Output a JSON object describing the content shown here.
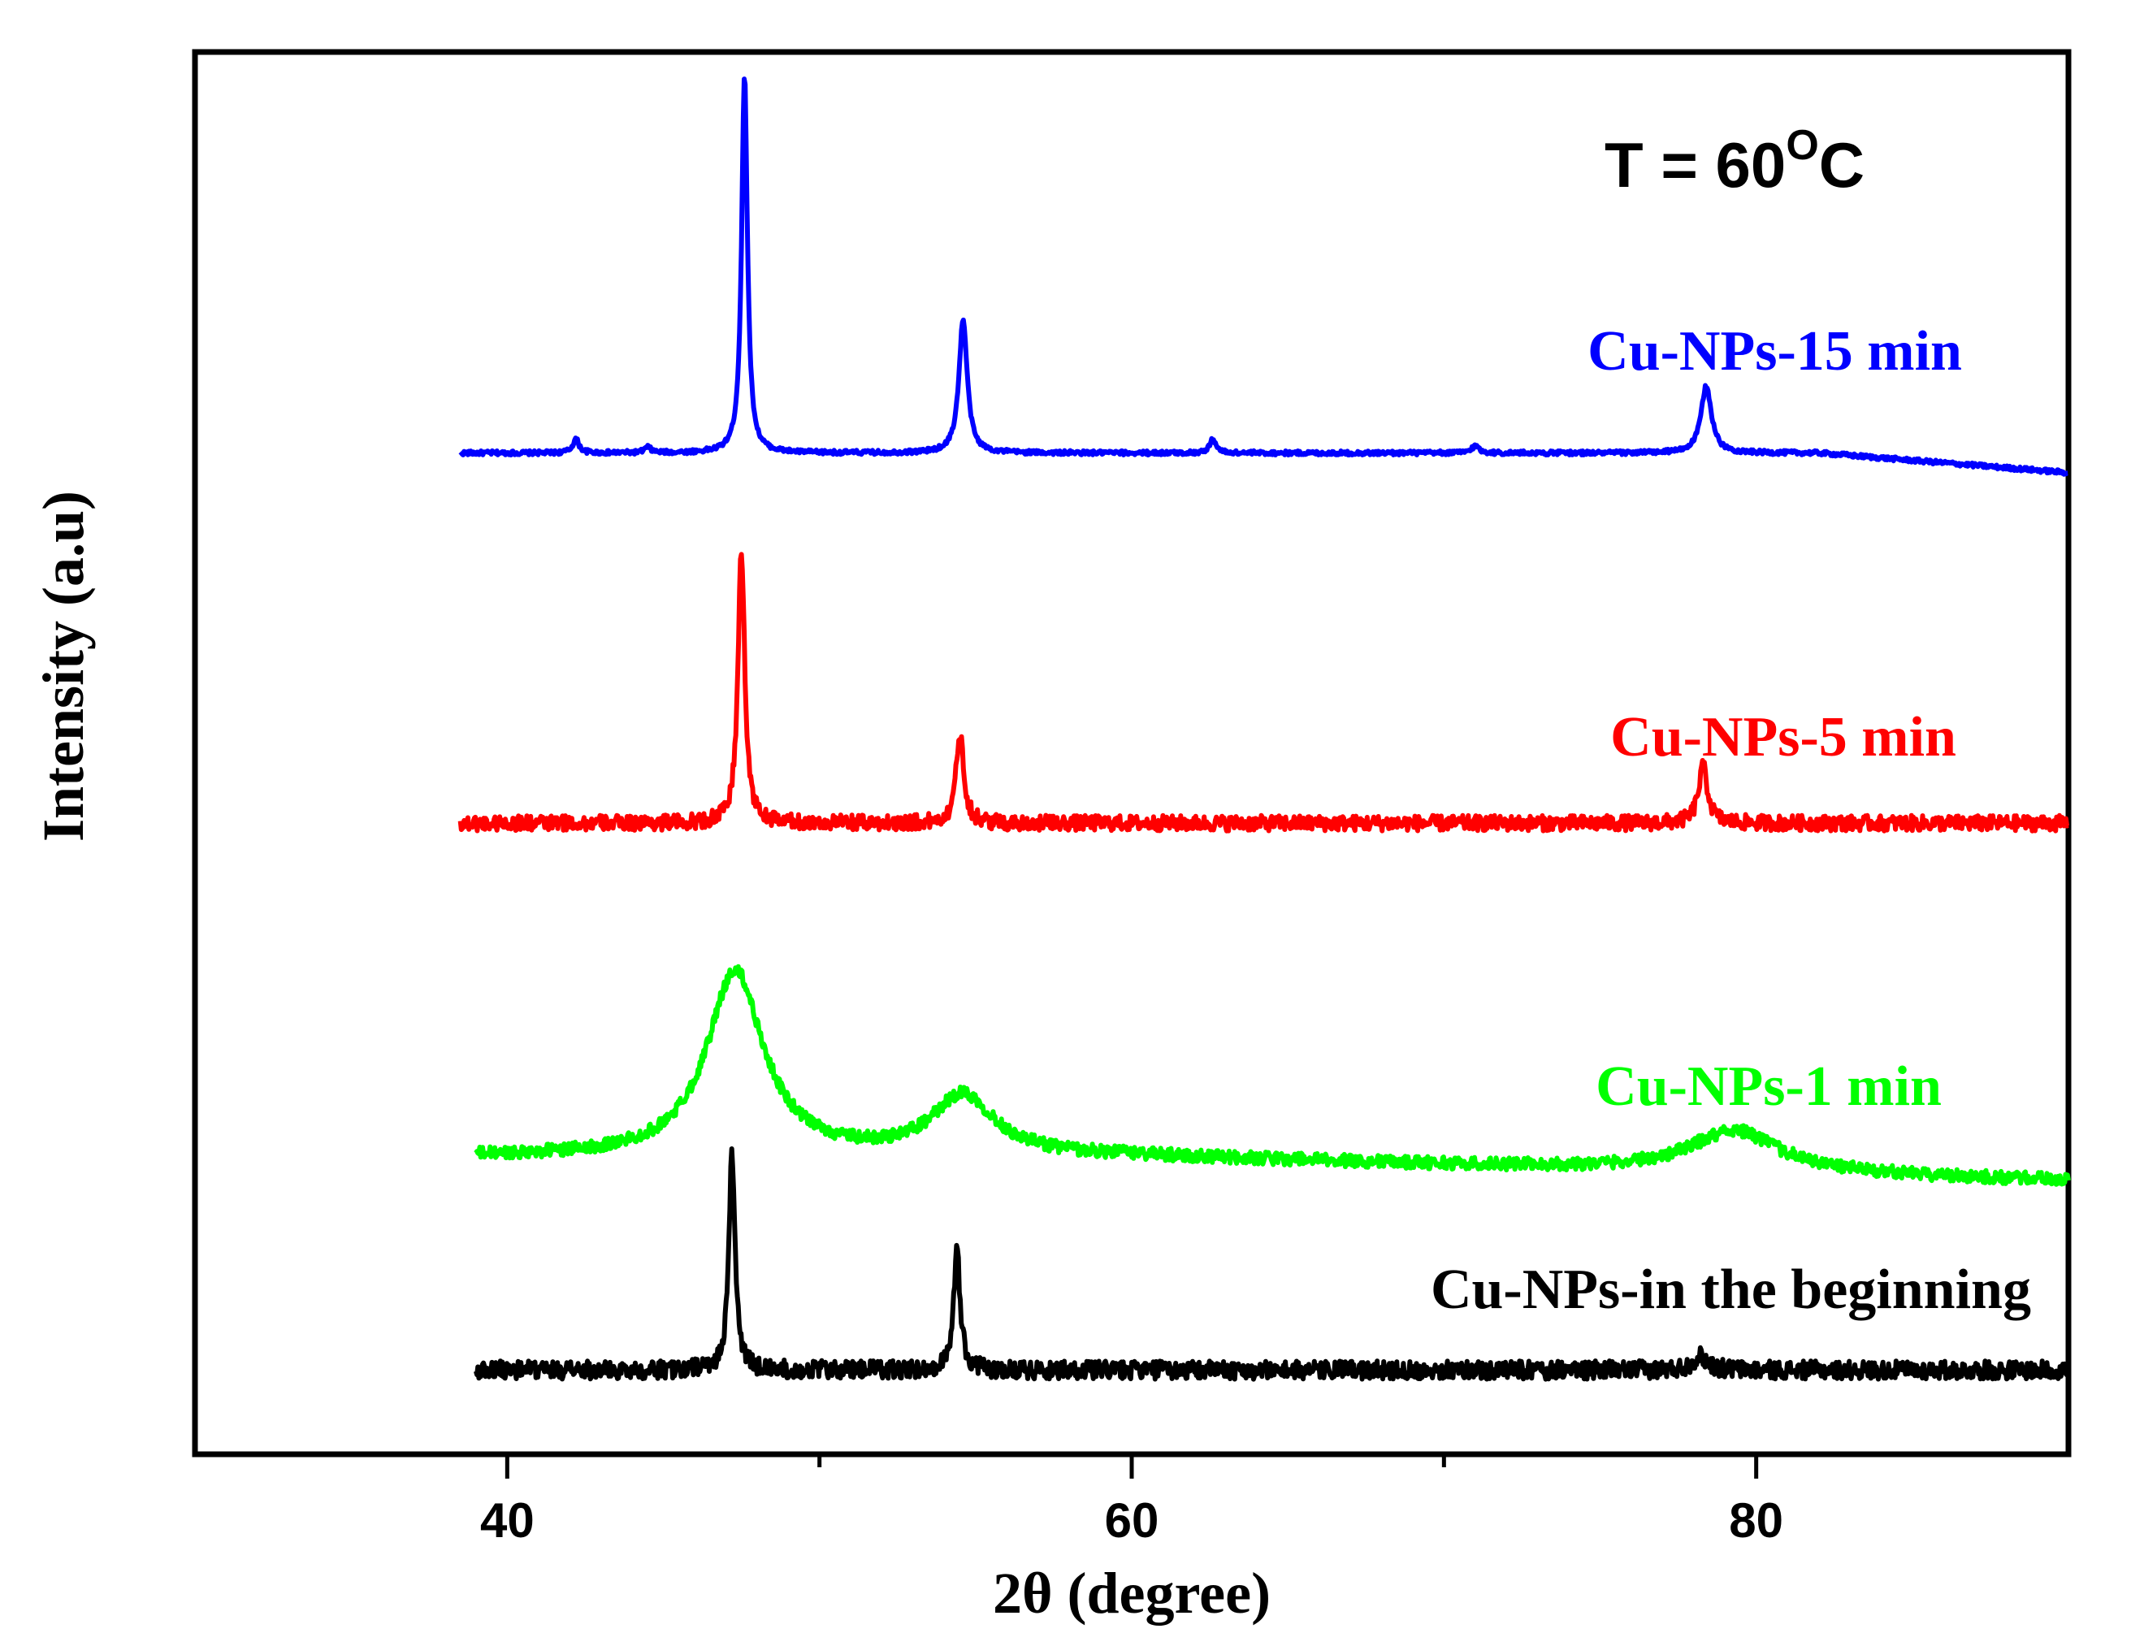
{
  "chart_data": {
    "type": "line",
    "title": "",
    "xlabel": "2θ (degree)",
    "ylabel": "Intensity (a.u)",
    "xlim": [
      30,
      90
    ],
    "ylim": [
      0,
      100
    ],
    "xticks": [
      40,
      60,
      80
    ],
    "xtick_labels": [
      "40",
      "60",
      "80"
    ],
    "minor_xticks": [
      50,
      70
    ],
    "y_ticks_shown": false,
    "grid": false,
    "annotation": {
      "text_main": "T = 60",
      "text_sup": "O",
      "text_unit": "C"
    },
    "series": [
      {
        "name": "Cu-NPs-15 min",
        "color": "#0000ff",
        "x_start": 38.5,
        "x_end": 90,
        "baseline": 71.4,
        "tail": 70.0,
        "tail_start": 82,
        "noise": 0.15,
        "peaks": [
          {
            "x": 42.2,
            "height": 1.0,
            "width": 0.12
          },
          {
            "x": 44.5,
            "height": 0.4,
            "width": 0.12
          },
          {
            "x": 47.6,
            "height": 27.0,
            "width": 0.11
          },
          {
            "x": 54.6,
            "height": 9.5,
            "width": 0.16
          },
          {
            "x": 62.6,
            "height": 1.0,
            "width": 0.12
          },
          {
            "x": 71.0,
            "height": 0.5,
            "width": 0.15
          },
          {
            "x": 78.4,
            "height": 4.8,
            "width": 0.2
          }
        ]
      },
      {
        "name": "Cu-NPs-5 min",
        "color": "#ff0000",
        "x_start": 38.5,
        "x_end": 90,
        "baseline": 45.0,
        "tail": 45.0,
        "tail_start": 90,
        "noise": 0.55,
        "peaks": [
          {
            "x": 47.5,
            "height": 19.5,
            "width": 0.13
          },
          {
            "x": 54.5,
            "height": 6.4,
            "width": 0.15
          },
          {
            "x": 78.3,
            "height": 4.0,
            "width": 0.18
          }
        ]
      },
      {
        "name": "Cu-NPs-1 min",
        "color": "#00ff00",
        "x_start": 39.0,
        "x_end": 90,
        "baseline": 21.2,
        "tail": 19.5,
        "tail_start": 60,
        "noise": 0.45,
        "peaks": [
          {
            "x": 47.3,
            "height": 13.2,
            "width": 1.1
          },
          {
            "x": 54.6,
            "height": 4.3,
            "width": 1.2
          },
          {
            "x": 79.3,
            "height": 3.0,
            "width": 1.7
          }
        ]
      },
      {
        "name": "Cu-NPs-in the beginning",
        "color": "#000000",
        "x_start": 39.0,
        "x_end": 90,
        "baseline": 6.0,
        "tail": 6.0,
        "tail_start": 90,
        "noise": 0.65,
        "peaks": [
          {
            "x": 47.2,
            "height": 15.5,
            "width": 0.12
          },
          {
            "x": 54.4,
            "height": 8.5,
            "width": 0.13
          },
          {
            "x": 78.2,
            "height": 1.0,
            "width": 0.3
          }
        ]
      }
    ]
  }
}
